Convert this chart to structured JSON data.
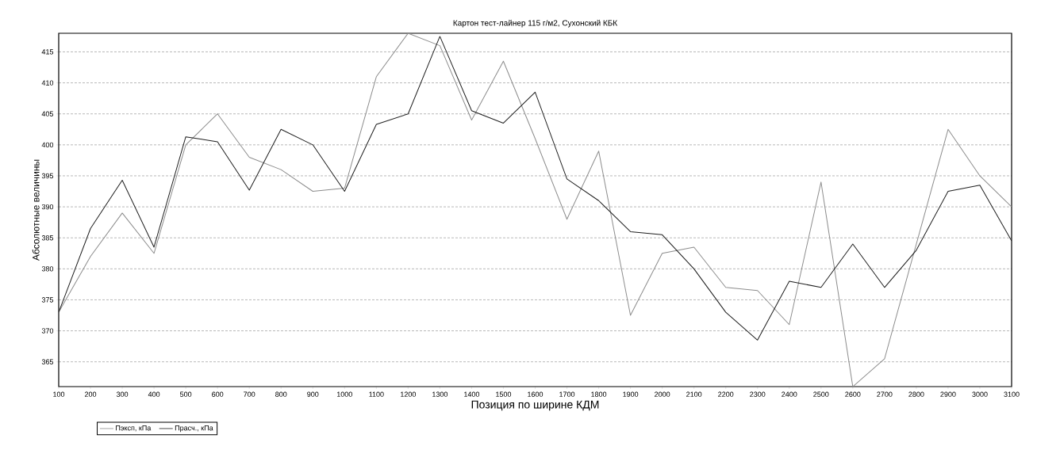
{
  "chart_data": {
    "type": "line",
    "title": "Картон тест-лайнер 115 г/м2, Сухонский КБК",
    "xlabel": "Позиция по ширине КДМ",
    "ylabel": "Абсолютные величины",
    "x": [
      100,
      200,
      300,
      400,
      500,
      600,
      700,
      800,
      900,
      1000,
      1100,
      1200,
      1300,
      1400,
      1500,
      1600,
      1700,
      1800,
      1900,
      2000,
      2100,
      2200,
      2300,
      2400,
      2500,
      2600,
      2700,
      2800,
      2900,
      3000,
      3100
    ],
    "series": [
      {
        "name": "Пэксп, кПа",
        "color": "#8c8c8c",
        "values": [
          373,
          382,
          389,
          382.5,
          400,
          405,
          398,
          396,
          392.5,
          393,
          411,
          418,
          416,
          404,
          413.5,
          401,
          388,
          399,
          372.5,
          382.5,
          383.5,
          377,
          376.5,
          371,
          394,
          361,
          365.5,
          384,
          402.5,
          395,
          390
        ]
      },
      {
        "name": "Прасч., кПа",
        "color": "#1e1e1e",
        "values": [
          373,
          386.5,
          394.3,
          383.5,
          401.3,
          400.5,
          392.7,
          402.5,
          400,
          392.5,
          403.3,
          405,
          417.5,
          405.5,
          403.5,
          408.5,
          394.5,
          391,
          386,
          385.5,
          380,
          373,
          368.5,
          378,
          377,
          384,
          377,
          383,
          392.5,
          393.5,
          384.5
        ]
      }
    ],
    "xlim": [
      100,
      3100
    ],
    "ylim": [
      361,
      418
    ],
    "xticks": [
      100,
      200,
      300,
      400,
      500,
      600,
      700,
      800,
      900,
      1000,
      1100,
      1200,
      1300,
      1400,
      1500,
      1600,
      1700,
      1800,
      1900,
      2000,
      2100,
      2200,
      2300,
      2400,
      2500,
      2600,
      2700,
      2800,
      2900,
      3000,
      3100
    ],
    "yticks": [
      365,
      370,
      375,
      380,
      385,
      390,
      395,
      400,
      405,
      410,
      415
    ],
    "grid": "y",
    "legend": "bottom",
    "marker": "none",
    "line_style": "solid"
  }
}
